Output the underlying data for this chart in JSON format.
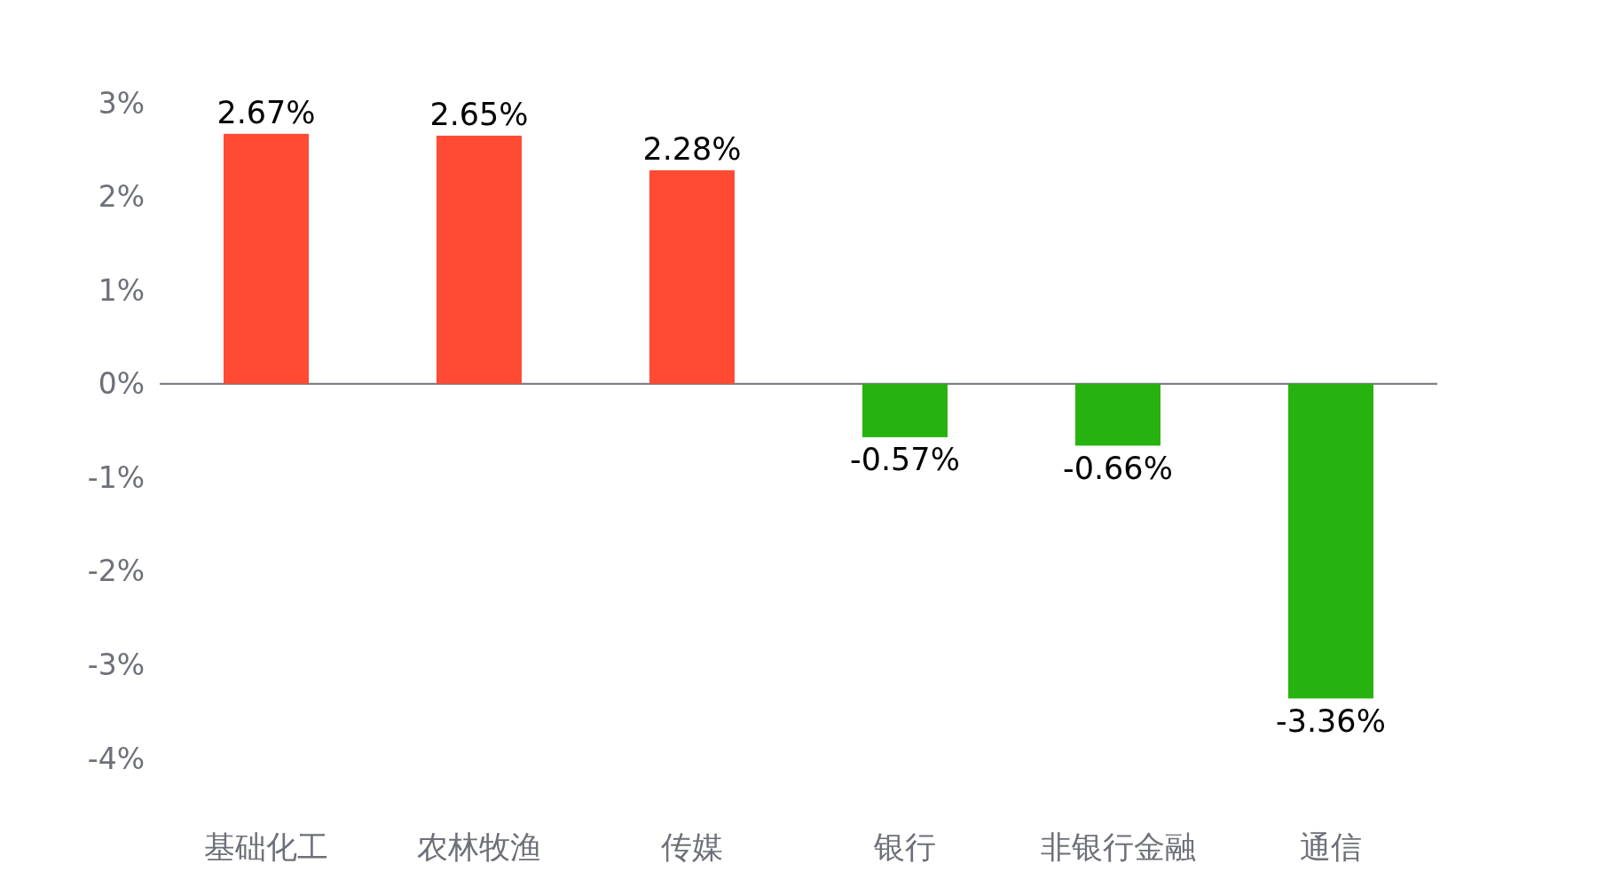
{
  "chart_data": {
    "type": "bar",
    "categories": [
      "基础化工",
      "农林牧渔",
      "传媒",
      "银行",
      "非银行金融",
      "通信"
    ],
    "values": [
      2.67,
      2.65,
      2.28,
      -0.57,
      -0.66,
      -3.36
    ],
    "colors": [
      "#ff4b33",
      "#ff4b33",
      "#ff4b33",
      "#27b30f",
      "#27b30f",
      "#27b30f"
    ],
    "value_labels": [
      "2.67%",
      "2.65%",
      "2.28%",
      "-0.57%",
      "-0.66%",
      "-3.36%"
    ],
    "ylim": [
      -4,
      3
    ],
    "yticks": [
      {
        "value": 3,
        "label": "3%"
      },
      {
        "value": 2,
        "label": "2%"
      },
      {
        "value": 1,
        "label": "1%"
      },
      {
        "value": 0,
        "label": "0%"
      },
      {
        "value": -1,
        "label": "-1%"
      },
      {
        "value": -2,
        "label": "-2%"
      },
      {
        "value": -3,
        "label": "-3%"
      },
      {
        "value": -4,
        "label": "-4%"
      }
    ],
    "relative": false
  }
}
